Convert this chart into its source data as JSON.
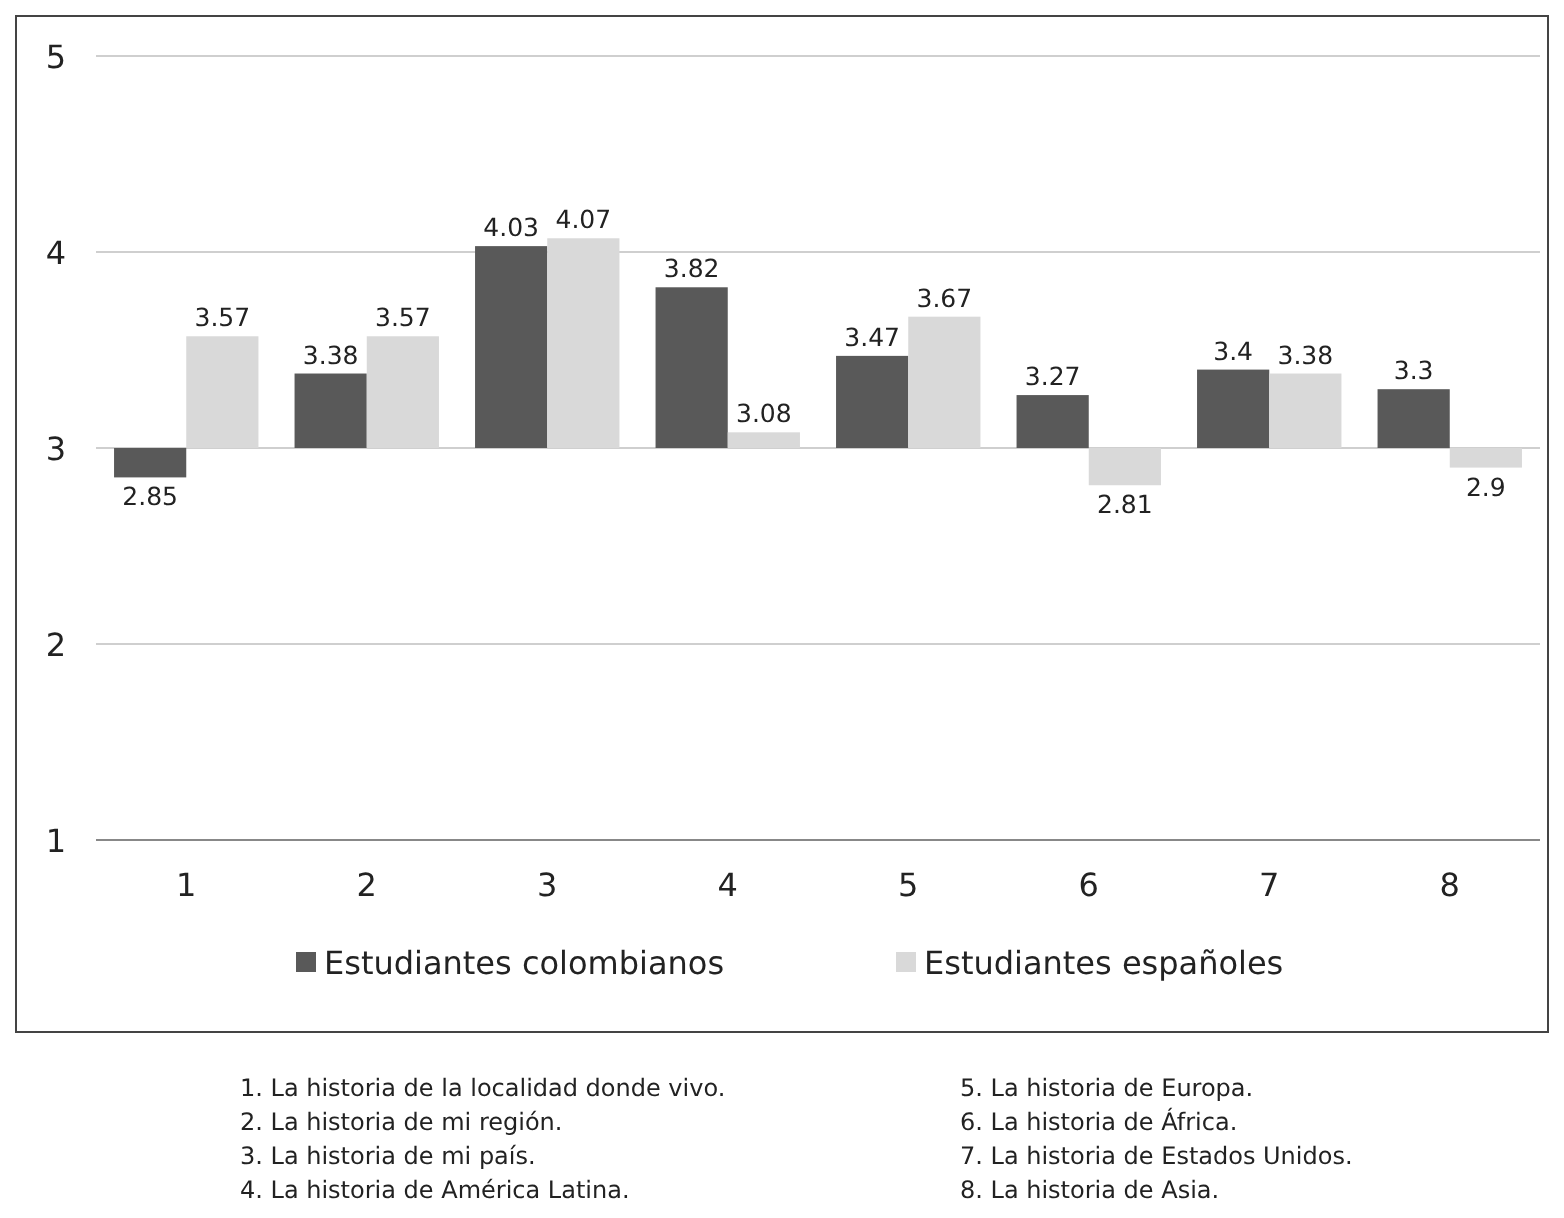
{
  "chart_data": {
    "type": "bar",
    "categories": [
      "1",
      "2",
      "3",
      "4",
      "5",
      "6",
      "7",
      "8"
    ],
    "series": [
      {
        "name": "Estudiantes colombianos",
        "color": "#595959",
        "base": [
          3,
          3,
          3,
          3,
          3,
          3,
          3,
          3
        ],
        "values": [
          -0.15,
          0.38,
          1.03,
          0.82,
          0.47,
          0.27,
          0.4,
          0.3
        ],
        "value_labels": [
          "2.85",
          "3.38",
          "4.03",
          "3.82",
          "3.47",
          "3.27",
          "3.4",
          "3.3"
        ]
      },
      {
        "name": "Estudiantes españoles",
        "color": "#d9d9d9",
        "base": [
          3,
          3,
          3,
          3,
          3,
          3,
          3,
          3
        ],
        "values": [
          0.57,
          0.57,
          1.07,
          0.08,
          0.67,
          -0.19,
          0.38,
          -0.1
        ],
        "value_labels": [
          "3.57",
          "3.57",
          "4.07",
          "3.08",
          "3.67",
          "2.81",
          "3.38",
          "2.9"
        ]
      }
    ],
    "ylim": [
      1,
      5
    ],
    "yticks": [
      1,
      2,
      3,
      4,
      5
    ],
    "grid": "y",
    "legend": "bottom",
    "annotations": [
      "1. La historia de la localidad donde vivo.",
      "2. La historia de mi región.",
      "3. La historia de mi país.",
      "4. La historia de América Latina.",
      "5. La historia de Europa.",
      "6. La historia de África.",
      "7. La historia de Estados Unidos.",
      "8. La historia de Asia."
    ]
  }
}
